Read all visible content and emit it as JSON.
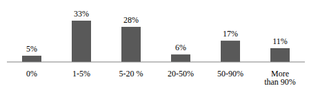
{
  "chart_data": {
    "type": "bar",
    "categories": [
      "0%",
      "1-5%",
      "5-20 %",
      "20-50%",
      "50-90%",
      "More than 90%"
    ],
    "values": [
      5,
      33,
      28,
      6,
      17,
      11
    ],
    "value_labels": [
      "5%",
      "33%",
      "28%",
      "6%",
      "17%",
      "11%"
    ],
    "data_labels": true,
    "color": "#595959",
    "ylim": [
      0,
      33
    ],
    "tick_labels": "x",
    "grid": false
  }
}
